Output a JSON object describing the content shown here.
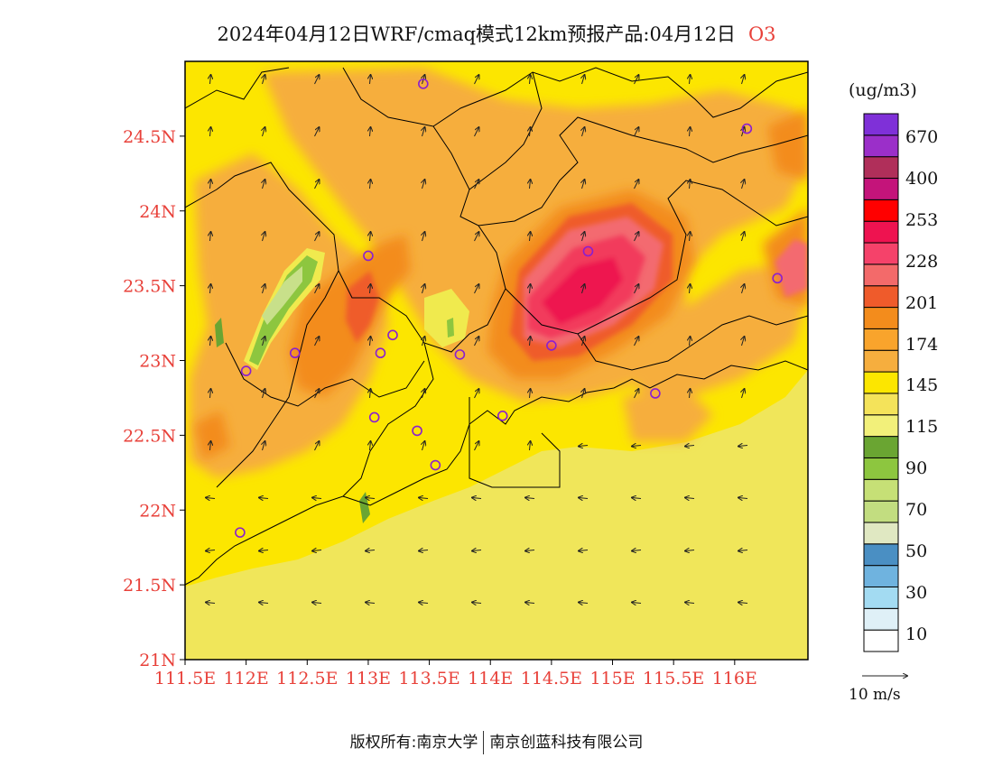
{
  "title": {
    "main": "2024年04月12日WRF/cmaq模式12km预报产品:04月12日",
    "species": "O3"
  },
  "map": {
    "y_ticks": [
      "21N",
      "21.5N",
      "22N",
      "22.5N",
      "23N",
      "23.5N",
      "24N",
      "24.5N"
    ],
    "x_ticks": [
      "111.5E",
      "112E",
      "112.5E",
      "113E",
      "113.5E",
      "114E",
      "114.5E",
      "115E",
      "115.5E",
      "116E"
    ],
    "lon_range": [
      111.5,
      116.6
    ],
    "lat_range": [
      21.0,
      25.0
    ],
    "colors": {
      "sea": "#f0e65a",
      "band145": "#fce600",
      "band174": "#f6ae3e",
      "band201": "#f38c1c",
      "band210": "#ef5b2b",
      "band228": "#f36a70",
      "band240": "#f23a5c",
      "band253": "#ee1350",
      "band115": "#f0ea4e",
      "band90": "#8dc63f",
      "band70": "#c8e08a",
      "band95": "#6aa532"
    }
  },
  "legend": {
    "unit": "(ug/m3)",
    "labels": [
      "670",
      "400",
      "253",
      "228",
      "201",
      "174",
      "145",
      "115",
      "90",
      "70",
      "50",
      "30",
      "10"
    ],
    "colors": [
      "#ffffff",
      "#dff0f7",
      "#a3dbf2",
      "#6fb3df",
      "#4a8fc3",
      "#e0e8c2",
      "#c2dd80",
      "#c6e076",
      "#8dc63f",
      "#6aa532",
      "#f2f07a",
      "#f4e35a",
      "#fce600",
      "#f6ae3e",
      "#f9a42c",
      "#f38c1c",
      "#ef5b2b",
      "#f36a6a",
      "#f5426a",
      "#ee1350",
      "#ff0000",
      "#c4147a",
      "#b02f5a",
      "#9b2fc9",
      "#7f30d8"
    ]
  },
  "wind_reference": "10 m/s",
  "copyright": {
    "prefix": "版权所有:南京大学",
    "suffix": "南京创蓝科技有限公司"
  },
  "stations": [
    {
      "lon": 113.45,
      "lat": 24.85
    },
    {
      "lon": 116.1,
      "lat": 24.55
    },
    {
      "lon": 113.0,
      "lat": 23.7
    },
    {
      "lon": 114.8,
      "lat": 23.73
    },
    {
      "lon": 116.35,
      "lat": 23.55
    },
    {
      "lon": 113.2,
      "lat": 23.17
    },
    {
      "lon": 112.4,
      "lat": 23.05
    },
    {
      "lon": 113.1,
      "lat": 23.05
    },
    {
      "lon": 113.75,
      "lat": 23.04
    },
    {
      "lon": 114.5,
      "lat": 23.1
    },
    {
      "lon": 112.0,
      "lat": 22.93
    },
    {
      "lon": 115.35,
      "lat": 22.78
    },
    {
      "lon": 113.05,
      "lat": 22.62
    },
    {
      "lon": 114.1,
      "lat": 22.63
    },
    {
      "lon": 113.4,
      "lat": 22.53
    },
    {
      "lon": 113.55,
      "lat": 22.3
    },
    {
      "lon": 111.95,
      "lat": 21.85
    }
  ]
}
